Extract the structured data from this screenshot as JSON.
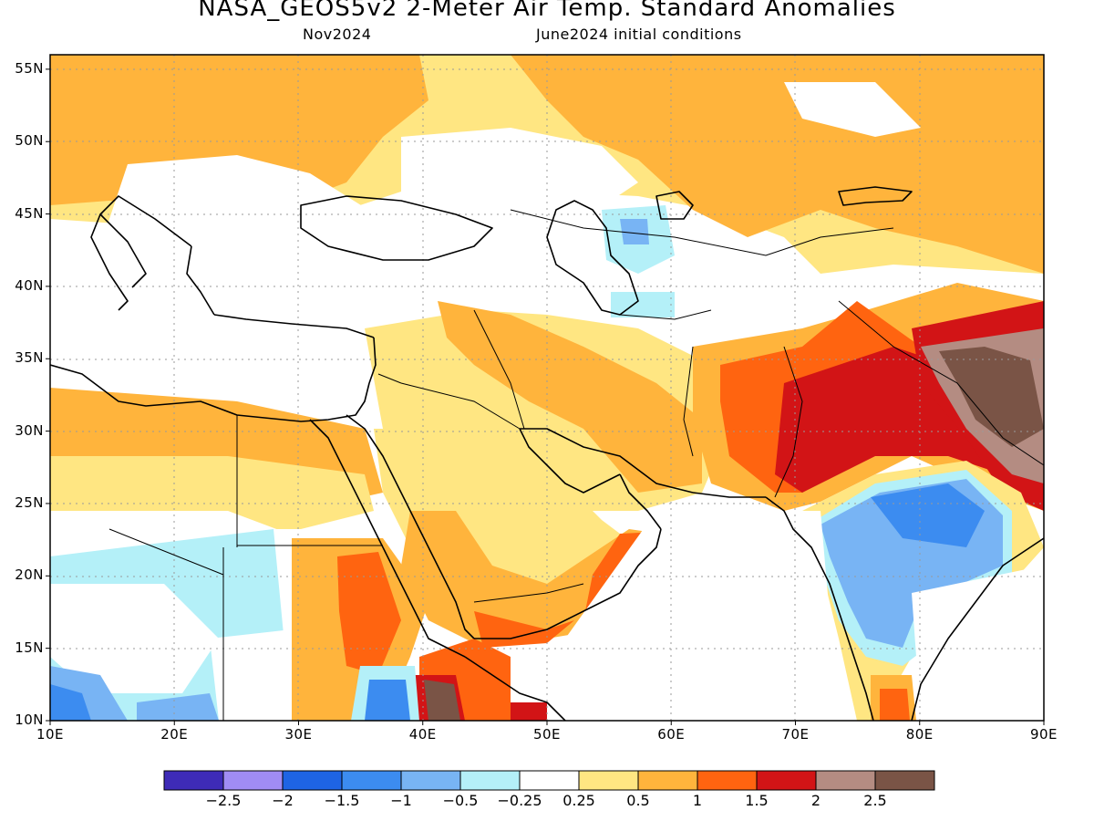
{
  "title": "NASA_GEOS5v2 2-Meter Air Temp. Standard Anomalies",
  "subtitle_left": "Nov2024",
  "subtitle_right": "June2024 initial conditions",
  "lat_labels": [
    "55N",
    "50N",
    "45N",
    "40N",
    "35N",
    "30N",
    "25N",
    "20N",
    "15N",
    "10N"
  ],
  "lon_labels": [
    "10E",
    "20E",
    "30E",
    "40E",
    "50E",
    "60E",
    "70E",
    "80E",
    "90E"
  ],
  "colorbar": {
    "colors": [
      "#3e2bb7",
      "#a08cf4",
      "#1e64e4",
      "#3c8cf0",
      "#78b4f4",
      "#b4f0f8",
      "#ffffff",
      "#ffe682",
      "#ffb43c",
      "#ff6410",
      "#d21416",
      "#b48c82",
      "#7a5446"
    ],
    "labels": [
      "-2.5",
      "-2",
      "-1.5",
      "-1",
      "-0.5",
      "-0.25",
      "0.25",
      "0.5",
      "1",
      "1.5",
      "2",
      "2.5"
    ]
  },
  "map_extent": {
    "lon_min": 10,
    "lon_max": 90,
    "lat_min": 10,
    "lat_max": 56
  },
  "anomaly_colors": {
    "light_yellow": "#ffe682",
    "orange": "#ffb43c",
    "dark_orange": "#ff6410",
    "red": "#d21416",
    "rosy_brown": "#b48c82",
    "dark_brown": "#7a5446",
    "light_cyan": "#b4f0f8",
    "light_blue": "#78b4f4",
    "blue": "#3c8cf0",
    "dark_blue": "#1e64e4"
  }
}
